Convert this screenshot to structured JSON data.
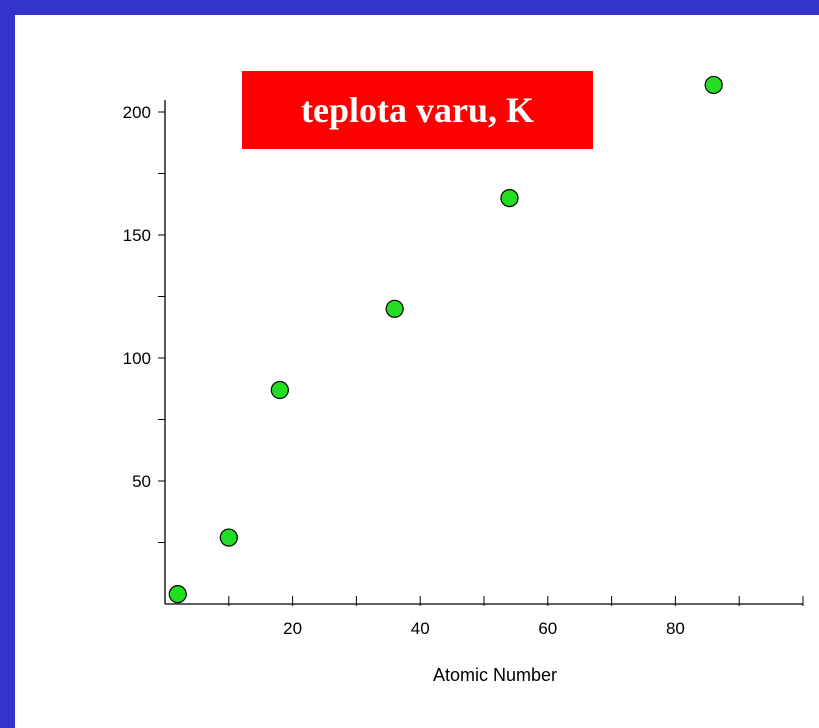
{
  "chart_data": {
    "type": "scatter",
    "title": "teplota varu, K",
    "xlabel": "Atomic Number",
    "ylabel": "",
    "xlim": [
      0,
      100
    ],
    "ylim": [
      0,
      200
    ],
    "x_ticks": [
      20,
      40,
      60,
      80
    ],
    "y_ticks": [
      50,
      100,
      150,
      200
    ],
    "grid": false,
    "colors": {
      "point_fill": "#22dd22",
      "point_stroke": "#000000",
      "title_background": "#ff0000",
      "title_text": "#ffffff",
      "frame": "#3333cc"
    },
    "series": [
      {
        "points": [
          {
            "x": 2,
            "y": 4
          },
          {
            "x": 10,
            "y": 27
          },
          {
            "x": 18,
            "y": 87
          },
          {
            "x": 36,
            "y": 120
          },
          {
            "x": 54,
            "y": 165
          },
          {
            "x": 86,
            "y": 211
          }
        ]
      }
    ]
  }
}
